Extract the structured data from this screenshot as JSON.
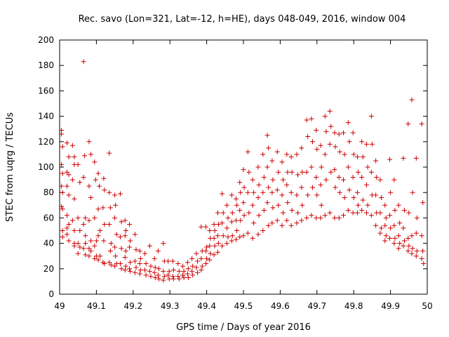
{
  "chart_data": {
    "type": "scatter",
    "title": "Rec. savo (Lon=321, Lat=-12, h=HE), days 048-049, 2016, window 004",
    "xlabel": "GPS time / Days of year 2016",
    "ylabel": "STEC from uqrg / TECUs",
    "xlim": [
      49,
      50
    ],
    "ylim": [
      0,
      200
    ],
    "x_ticks": [
      49,
      49.1,
      49.2,
      49.3,
      49.4,
      49.5,
      49.6,
      49.7,
      49.8,
      49.9,
      50
    ],
    "x_tick_labels": [
      "49",
      "49.1",
      "49.2",
      "49.3",
      "49.4",
      "49.5",
      "49.6",
      "49.7",
      "49.8",
      "49.9",
      "50"
    ],
    "y_ticks": [
      0,
      20,
      40,
      60,
      80,
      100,
      120,
      140,
      160,
      180,
      200
    ],
    "y_tick_labels": [
      "0",
      "20",
      "40",
      "60",
      "80",
      "100",
      "120",
      "140",
      "160",
      "180",
      "200"
    ],
    "grid": false,
    "marker": "plus",
    "marker_color": "#cc0000",
    "points": [
      [
        49.005,
        129
      ],
      [
        49.005,
        126
      ],
      [
        49.008,
        116
      ],
      [
        49.005,
        102
      ],
      [
        49.008,
        95
      ],
      [
        49.005,
        85
      ],
      [
        49.008,
        80
      ],
      [
        49.005,
        69
      ],
      [
        49.008,
        67
      ],
      [
        49.008,
        50
      ],
      [
        49.008,
        45
      ],
      [
        49.02,
        119
      ],
      [
        49.025,
        108
      ],
      [
        49.02,
        96
      ],
      [
        49.025,
        94
      ],
      [
        49.02,
        85
      ],
      [
        49.025,
        78
      ],
      [
        49.02,
        62
      ],
      [
        49.025,
        55
      ],
      [
        49.02,
        52
      ],
      [
        49.02,
        47
      ],
      [
        49.025,
        42
      ],
      [
        49.035,
        117
      ],
      [
        49.04,
        108
      ],
      [
        49.04,
        102
      ],
      [
        49.035,
        90
      ],
      [
        49.04,
        75
      ],
      [
        49.035,
        58
      ],
      [
        49.04,
        50
      ],
      [
        49.04,
        40
      ],
      [
        49.04,
        38
      ],
      [
        49.05,
        102
      ],
      [
        49.055,
        88
      ],
      [
        49.05,
        60
      ],
      [
        49.055,
        50
      ],
      [
        49.05,
        40
      ],
      [
        49.055,
        37
      ],
      [
        49.05,
        32
      ],
      [
        49.065,
        183
      ],
      [
        49.068,
        109
      ],
      [
        49.065,
        92
      ],
      [
        49.07,
        60
      ],
      [
        49.065,
        55
      ],
      [
        49.07,
        46
      ],
      [
        49.07,
        40
      ],
      [
        49.065,
        36
      ],
      [
        49.07,
        31
      ],
      [
        49.08,
        120
      ],
      [
        49.085,
        110
      ],
      [
        49.08,
        85
      ],
      [
        49.085,
        76
      ],
      [
        49.08,
        58
      ],
      [
        49.085,
        42
      ],
      [
        49.08,
        36
      ],
      [
        49.085,
        34
      ],
      [
        49.08,
        30
      ],
      [
        49.095,
        104
      ],
      [
        49.098,
        90
      ],
      [
        49.095,
        60
      ],
      [
        49.1,
        42
      ],
      [
        49.095,
        38
      ],
      [
        49.1,
        30
      ],
      [
        49.095,
        28
      ],
      [
        49.105,
        95
      ],
      [
        49.108,
        85
      ],
      [
        49.105,
        67
      ],
      [
        49.11,
        50
      ],
      [
        49.105,
        46
      ],
      [
        49.11,
        30
      ],
      [
        49.105,
        27
      ],
      [
        49.12,
        91
      ],
      [
        49.122,
        82
      ],
      [
        49.118,
        68
      ],
      [
        49.122,
        55
      ],
      [
        49.12,
        42
      ],
      [
        49.118,
        25
      ],
      [
        49.122,
        24
      ],
      [
        49.135,
        111
      ],
      [
        49.135,
        80
      ],
      [
        49.138,
        68
      ],
      [
        49.135,
        55
      ],
      [
        49.14,
        40
      ],
      [
        49.138,
        34
      ],
      [
        49.135,
        25
      ],
      [
        49.14,
        23
      ],
      [
        49.15,
        78
      ],
      [
        49.152,
        70
      ],
      [
        49.15,
        60
      ],
      [
        49.155,
        47
      ],
      [
        49.15,
        37
      ],
      [
        49.152,
        30
      ],
      [
        49.155,
        24
      ],
      [
        49.15,
        22
      ],
      [
        49.165,
        79
      ],
      [
        49.168,
        57
      ],
      [
        49.165,
        45
      ],
      [
        49.168,
        36
      ],
      [
        49.165,
        24
      ],
      [
        49.168,
        20
      ],
      [
        49.178,
        58
      ],
      [
        49.18,
        50
      ],
      [
        49.178,
        46
      ],
      [
        49.18,
        34
      ],
      [
        49.178,
        29
      ],
      [
        49.18,
        22
      ],
      [
        49.178,
        19
      ],
      [
        49.19,
        55
      ],
      [
        49.192,
        42
      ],
      [
        49.19,
        37
      ],
      [
        49.192,
        25
      ],
      [
        49.19,
        20
      ],
      [
        49.192,
        18
      ],
      [
        49.205,
        47
      ],
      [
        49.208,
        35
      ],
      [
        49.205,
        26
      ],
      [
        49.208,
        21
      ],
      [
        49.205,
        17
      ],
      [
        49.218,
        34
      ],
      [
        49.22,
        28
      ],
      [
        49.218,
        24
      ],
      [
        49.22,
        19
      ],
      [
        49.218,
        16
      ],
      [
        49.232,
        32
      ],
      [
        49.235,
        24
      ],
      [
        49.232,
        19
      ],
      [
        49.235,
        15
      ],
      [
        49.245,
        38
      ],
      [
        49.248,
        22
      ],
      [
        49.245,
        18
      ],
      [
        49.248,
        14
      ],
      [
        49.258,
        28
      ],
      [
        49.26,
        21
      ],
      [
        49.258,
        17
      ],
      [
        49.26,
        13
      ],
      [
        49.268,
        34
      ],
      [
        49.27,
        20
      ],
      [
        49.268,
        15
      ],
      [
        49.27,
        12
      ],
      [
        49.282,
        40
      ],
      [
        49.285,
        26
      ],
      [
        49.282,
        18
      ],
      [
        49.285,
        14
      ],
      [
        49.282,
        11
      ],
      [
        49.295,
        26
      ],
      [
        49.298,
        18
      ],
      [
        49.295,
        15
      ],
      [
        49.298,
        12
      ],
      [
        49.308,
        26
      ],
      [
        49.31,
        19
      ],
      [
        49.308,
        14
      ],
      [
        49.31,
        12
      ],
      [
        49.322,
        24
      ],
      [
        49.325,
        18
      ],
      [
        49.322,
        14
      ],
      [
        49.325,
        12
      ],
      [
        49.335,
        22
      ],
      [
        49.338,
        18
      ],
      [
        49.335,
        15
      ],
      [
        49.338,
        13
      ],
      [
        49.348,
        25
      ],
      [
        49.35,
        20
      ],
      [
        49.348,
        16
      ],
      [
        49.35,
        13
      ],
      [
        49.36,
        28
      ],
      [
        49.362,
        22
      ],
      [
        49.36,
        18
      ],
      [
        49.362,
        15
      ],
      [
        49.372,
        32
      ],
      [
        49.375,
        26
      ],
      [
        49.372,
        21
      ],
      [
        49.375,
        17
      ],
      [
        49.385,
        53
      ],
      [
        49.388,
        34
      ],
      [
        49.385,
        28
      ],
      [
        49.388,
        22
      ],
      [
        49.385,
        19
      ],
      [
        49.398,
        53
      ],
      [
        49.4,
        37
      ],
      [
        49.398,
        34
      ],
      [
        49.4,
        28
      ],
      [
        49.398,
        24
      ],
      [
        49.408,
        50
      ],
      [
        49.41,
        44
      ],
      [
        49.408,
        38
      ],
      [
        49.41,
        32
      ],
      [
        49.408,
        27
      ],
      [
        49.42,
        55
      ],
      [
        49.422,
        50
      ],
      [
        49.42,
        44
      ],
      [
        49.422,
        38
      ],
      [
        49.42,
        31
      ],
      [
        49.43,
        64
      ],
      [
        49.432,
        55
      ],
      [
        49.43,
        46
      ],
      [
        49.432,
        40
      ],
      [
        49.43,
        33
      ],
      [
        49.442,
        79
      ],
      [
        49.445,
        64
      ],
      [
        49.442,
        56
      ],
      [
        49.445,
        46
      ],
      [
        49.442,
        38
      ],
      [
        49.455,
        70
      ],
      [
        49.458,
        60
      ],
      [
        49.455,
        52
      ],
      [
        49.458,
        45
      ],
      [
        49.455,
        40
      ],
      [
        49.468,
        78
      ],
      [
        49.47,
        64
      ],
      [
        49.468,
        57
      ],
      [
        49.47,
        46
      ],
      [
        49.468,
        42
      ],
      [
        49.48,
        75
      ],
      [
        49.482,
        70
      ],
      [
        49.48,
        58
      ],
      [
        49.482,
        50
      ],
      [
        49.48,
        43
      ],
      [
        49.49,
        88
      ],
      [
        49.492,
        80
      ],
      [
        49.49,
        66
      ],
      [
        49.492,
        58
      ],
      [
        49.49,
        45
      ],
      [
        49.5,
        98
      ],
      [
        49.502,
        84
      ],
      [
        49.5,
        72
      ],
      [
        49.502,
        62
      ],
      [
        49.5,
        46
      ],
      [
        49.512,
        112
      ],
      [
        49.515,
        96
      ],
      [
        49.512,
        80
      ],
      [
        49.515,
        64
      ],
      [
        49.512,
        48
      ],
      [
        49.525,
        90
      ],
      [
        49.528,
        80
      ],
      [
        49.525,
        70
      ],
      [
        49.528,
        56
      ],
      [
        49.525,
        44
      ],
      [
        49.54,
        100
      ],
      [
        49.542,
        86
      ],
      [
        49.54,
        76
      ],
      [
        49.542,
        62
      ],
      [
        49.54,
        47
      ],
      [
        49.553,
        110
      ],
      [
        49.556,
        92
      ],
      [
        49.553,
        80
      ],
      [
        49.556,
        66
      ],
      [
        49.553,
        50
      ],
      [
        49.565,
        125
      ],
      [
        49.568,
        115
      ],
      [
        49.565,
        100
      ],
      [
        49.568,
        84
      ],
      [
        49.565,
        72
      ],
      [
        49.568,
        54
      ],
      [
        49.578,
        105
      ],
      [
        49.58,
        90
      ],
      [
        49.578,
        80
      ],
      [
        49.58,
        68
      ],
      [
        49.578,
        56
      ],
      [
        49.592,
        112
      ],
      [
        49.595,
        96
      ],
      [
        49.592,
        82
      ],
      [
        49.595,
        70
      ],
      [
        49.592,
        58
      ],
      [
        49.605,
        104
      ],
      [
        49.608,
        90
      ],
      [
        49.605,
        78
      ],
      [
        49.608,
        64
      ],
      [
        49.605,
        54
      ],
      [
        49.618,
        110
      ],
      [
        49.62,
        96
      ],
      [
        49.618,
        86
      ],
      [
        49.62,
        72
      ],
      [
        49.618,
        58
      ],
      [
        49.63,
        108
      ],
      [
        49.632,
        96
      ],
      [
        49.63,
        80
      ],
      [
        49.632,
        66
      ],
      [
        49.63,
        54
      ],
      [
        49.645,
        110
      ],
      [
        49.648,
        94
      ],
      [
        49.645,
        78
      ],
      [
        49.648,
        64
      ],
      [
        49.645,
        56
      ],
      [
        49.658,
        115
      ],
      [
        49.66,
        96
      ],
      [
        49.658,
        84
      ],
      [
        49.66,
        70
      ],
      [
        49.658,
        58
      ],
      [
        49.672,
        137
      ],
      [
        49.675,
        124
      ],
      [
        49.672,
        96
      ],
      [
        49.675,
        78
      ],
      [
        49.672,
        60
      ],
      [
        49.685,
        138
      ],
      [
        49.688,
        120
      ],
      [
        49.685,
        100
      ],
      [
        49.688,
        84
      ],
      [
        49.685,
        62
      ],
      [
        49.698,
        129
      ],
      [
        49.7,
        114
      ],
      [
        49.698,
        92
      ],
      [
        49.7,
        78
      ],
      [
        49.698,
        60
      ],
      [
        49.71,
        117
      ],
      [
        49.712,
        100
      ],
      [
        49.71,
        86
      ],
      [
        49.712,
        70
      ],
      [
        49.71,
        60
      ],
      [
        49.722,
        140
      ],
      [
        49.725,
        128
      ],
      [
        49.722,
        110
      ],
      [
        49.725,
        90
      ],
      [
        49.722,
        62
      ],
      [
        49.735,
        144
      ],
      [
        49.738,
        132
      ],
      [
        49.735,
        118
      ],
      [
        49.738,
        96
      ],
      [
        49.735,
        64
      ],
      [
        49.748,
        127
      ],
      [
        49.75,
        116
      ],
      [
        49.748,
        98
      ],
      [
        49.75,
        84
      ],
      [
        49.748,
        60
      ],
      [
        49.76,
        126
      ],
      [
        49.762,
        112
      ],
      [
        49.76,
        92
      ],
      [
        49.762,
        80
      ],
      [
        49.76,
        60
      ],
      [
        49.772,
        127
      ],
      [
        49.775,
        110
      ],
      [
        49.772,
        90
      ],
      [
        49.775,
        76
      ],
      [
        49.772,
        62
      ],
      [
        49.785,
        135
      ],
      [
        49.788,
        120
      ],
      [
        49.785,
        100
      ],
      [
        49.788,
        82
      ],
      [
        49.785,
        66
      ],
      [
        49.798,
        127
      ],
      [
        49.8,
        110
      ],
      [
        49.798,
        92
      ],
      [
        49.8,
        76
      ],
      [
        49.798,
        64
      ],
      [
        49.81,
        108
      ],
      [
        49.812,
        96
      ],
      [
        49.81,
        80
      ],
      [
        49.812,
        70
      ],
      [
        49.81,
        64
      ],
      [
        49.822,
        120
      ],
      [
        49.825,
        108
      ],
      [
        49.822,
        92
      ],
      [
        49.825,
        74
      ],
      [
        49.822,
        66
      ],
      [
        49.835,
        118
      ],
      [
        49.838,
        100
      ],
      [
        49.835,
        86
      ],
      [
        49.838,
        70
      ],
      [
        49.835,
        64
      ],
      [
        49.848,
        140
      ],
      [
        49.85,
        118
      ],
      [
        49.848,
        96
      ],
      [
        49.85,
        78
      ],
      [
        49.848,
        62
      ],
      [
        49.86,
        105
      ],
      [
        49.862,
        92
      ],
      [
        49.86,
        78
      ],
      [
        49.862,
        64
      ],
      [
        49.86,
        54
      ],
      [
        49.872,
        90
      ],
      [
        49.875,
        76
      ],
      [
        49.872,
        64
      ],
      [
        49.875,
        52
      ],
      [
        49.872,
        48
      ],
      [
        49.885,
        70
      ],
      [
        49.888,
        60
      ],
      [
        49.885,
        54
      ],
      [
        49.888,
        46
      ],
      [
        49.885,
        42
      ],
      [
        49.898,
        106
      ],
      [
        49.9,
        80
      ],
      [
        49.898,
        62
      ],
      [
        49.9,
        52
      ],
      [
        49.898,
        44
      ],
      [
        49.91,
        90
      ],
      [
        49.912,
        66
      ],
      [
        49.91,
        54
      ],
      [
        49.912,
        44
      ],
      [
        49.91,
        40
      ],
      [
        49.922,
        70
      ],
      [
        49.925,
        56
      ],
      [
        49.922,
        46
      ],
      [
        49.925,
        40
      ],
      [
        49.922,
        36
      ],
      [
        49.935,
        107
      ],
      [
        49.938,
        66
      ],
      [
        49.935,
        52
      ],
      [
        49.938,
        42
      ],
      [
        49.935,
        38
      ],
      [
        49.948,
        134
      ],
      [
        49.95,
        64
      ],
      [
        49.948,
        44
      ],
      [
        49.95,
        38
      ],
      [
        49.948,
        34
      ],
      [
        49.958,
        153
      ],
      [
        49.96,
        80
      ],
      [
        49.958,
        46
      ],
      [
        49.96,
        36
      ],
      [
        49.958,
        32
      ],
      [
        49.97,
        107
      ],
      [
        49.972,
        60
      ],
      [
        49.97,
        48
      ],
      [
        49.972,
        34
      ],
      [
        49.97,
        30
      ],
      [
        49.985,
        134
      ],
      [
        49.988,
        72
      ],
      [
        49.985,
        46
      ],
      [
        49.988,
        34
      ],
      [
        49.985,
        28
      ],
      [
        49.99,
        24
      ]
    ]
  }
}
